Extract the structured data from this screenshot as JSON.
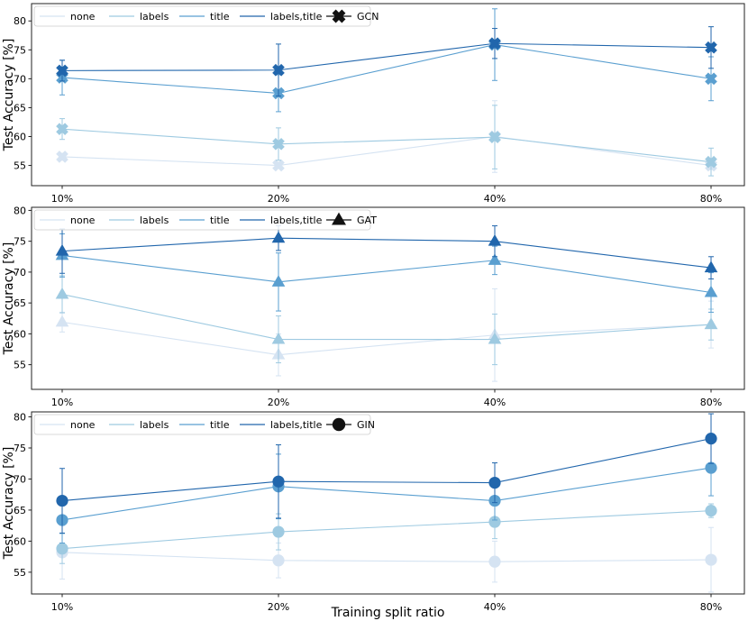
{
  "chart_data": [
    {
      "type": "line",
      "model": "GCN",
      "marker": "x",
      "categories": [
        "10%",
        "20%",
        "40%",
        "80%"
      ],
      "ylabel": "Test Accuracy [%]",
      "ylim": [
        51.5,
        83
      ],
      "yticks": [
        55,
        60,
        65,
        70,
        75,
        80
      ],
      "series": [
        {
          "name": "none",
          "values": [
            56.5,
            55.0,
            60.0,
            55.0
          ],
          "errors": [
            0.6,
            0.5,
            6.2,
            0.7
          ]
        },
        {
          "name": "labels",
          "values": [
            61.3,
            58.7,
            59.9,
            55.6
          ],
          "errors": [
            1.8,
            2.8,
            5.5,
            2.4
          ]
        },
        {
          "name": "title",
          "values": [
            70.2,
            67.5,
            75.9,
            70.0
          ],
          "errors": [
            3.0,
            3.2,
            6.2,
            3.8
          ]
        },
        {
          "name": "labels,title",
          "values": [
            71.4,
            71.5,
            76.1,
            75.4
          ],
          "errors": [
            1.8,
            4.5,
            2.6,
            3.6
          ]
        }
      ]
    },
    {
      "type": "line",
      "model": "GAT",
      "marker": "triangle",
      "categories": [
        "10%",
        "20%",
        "40%",
        "80%"
      ],
      "ylabel": "Test Accuracy [%]",
      "ylim": [
        51,
        80.5
      ],
      "yticks": [
        55,
        60,
        65,
        70,
        75,
        80
      ],
      "series": [
        {
          "name": "none",
          "values": [
            61.9,
            56.6,
            59.8,
            61.5
          ],
          "errors": [
            1.6,
            3.4,
            7.5,
            3.8
          ]
        },
        {
          "name": "labels",
          "values": [
            66.4,
            59.1,
            59.1,
            61.5
          ],
          "errors": [
            3.0,
            3.8,
            4.1,
            2.5
          ]
        },
        {
          "name": "title",
          "values": [
            72.7,
            68.4,
            71.9,
            66.7
          ],
          "errors": [
            3.5,
            4.7,
            2.3,
            3.2
          ]
        },
        {
          "name": "labels,title",
          "values": [
            73.4,
            75.5,
            75.0,
            70.7
          ],
          "errors": [
            3.6,
            2.0,
            2.5,
            1.8
          ]
        }
      ]
    },
    {
      "type": "line",
      "model": "GIN",
      "marker": "circle",
      "categories": [
        "10%",
        "20%",
        "40%",
        "80%"
      ],
      "xlabel": "Training split ratio",
      "ylabel": "Test Accuracy [%]",
      "ylim": [
        51.5,
        80.8
      ],
      "yticks": [
        55,
        60,
        65,
        70,
        75,
        80
      ],
      "series": [
        {
          "name": "none",
          "values": [
            58.2,
            56.9,
            56.7,
            57.0
          ],
          "errors": [
            4.3,
            2.8,
            3.3,
            5.2
          ]
        },
        {
          "name": "labels",
          "values": [
            58.8,
            61.5,
            63.1,
            64.9
          ],
          "errors": [
            2.4,
            2.9,
            2.7,
            1.1
          ]
        },
        {
          "name": "title",
          "values": [
            63.4,
            68.8,
            66.5,
            71.8
          ],
          "errors": [
            3.7,
            5.2,
            3.1,
            4.5
          ]
        },
        {
          "name": "labels,title",
          "values": [
            66.5,
            69.6,
            69.4,
            76.5
          ],
          "errors": [
            5.2,
            5.9,
            3.2,
            4.0
          ]
        }
      ]
    }
  ],
  "colors": {
    "none": "#d5e3f2",
    "labels": "#9ecae1",
    "title": "#5a9fd0",
    "labels,title": "#2166ac",
    "marker_legend": "#111111"
  }
}
